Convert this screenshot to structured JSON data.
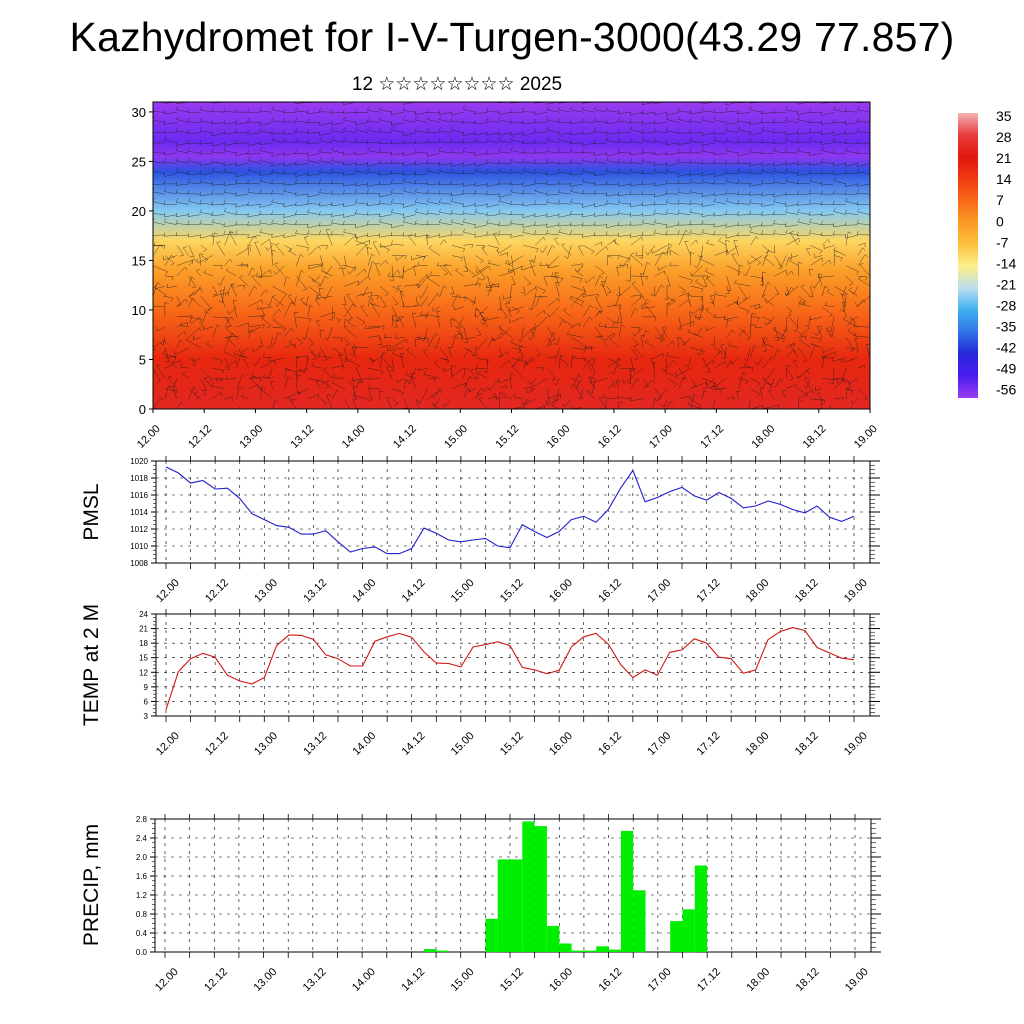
{
  "header": {
    "title": "Kazhydromet for I-V-Turgen-3000(43.29 77.857)",
    "subtitle": "12 ☆☆☆☆☆☆☆☆ 2025"
  },
  "chart_data": [
    {
      "type": "heatmap",
      "id": "vertical-section",
      "title": "",
      "x_tick_labels": [
        "12.00",
        "12.12",
        "13.00",
        "13.12",
        "14.00",
        "14.12",
        "15.00",
        "15.12",
        "16.00",
        "16.12",
        "17.00",
        "17.12",
        "18.00",
        "18.12",
        "19.00"
      ],
      "y_tick_labels": [
        "0",
        "5",
        "10",
        "15",
        "20",
        "25",
        "30"
      ],
      "ylim": [
        0,
        31
      ],
      "overlay": "wind barbs",
      "colorbar": {
        "labels": [
          "35",
          "28",
          "21",
          "14",
          "7",
          "0",
          "-7",
          "-14",
          "-21",
          "-28",
          "-35",
          "-42",
          "-49",
          "-56"
        ],
        "colors": [
          "#f2b3b3",
          "#e83c3c",
          "#e0180f",
          "#f03a10",
          "#f86a18",
          "#fb9a26",
          "#fcc240",
          "#fef08a",
          "#b9def0",
          "#3fb0ef",
          "#2f73e8",
          "#2626d8",
          "#4a1df0",
          "#9a3bf0"
        ]
      },
      "profile_levels": [
        0,
        5,
        10,
        14,
        17,
        20,
        24,
        25.5,
        27,
        31
      ],
      "profile_values_c": [
        24,
        18,
        7,
        -1,
        -10,
        -24,
        -38,
        -55,
        -52,
        -57
      ]
    },
    {
      "type": "line",
      "id": "pmsl",
      "ylabel": "PMSL",
      "ylim": [
        1008,
        1020
      ],
      "y_tick_labels": [
        "1020",
        "1018",
        "1016",
        "1014",
        "1012",
        "1010",
        "1008"
      ],
      "x_tick_labels": [
        "12.00",
        "12.12",
        "13.00",
        "13.12",
        "14.00",
        "14.12",
        "15.00",
        "15.12",
        "16.00",
        "16.12",
        "17.00",
        "17.12",
        "18.00",
        "18.12",
        "19.00"
      ],
      "x_hours": [
        0,
        3,
        6,
        9,
        12,
        15,
        18,
        21,
        24,
        27,
        30,
        33,
        36,
        39,
        42,
        45,
        48,
        51,
        54,
        57,
        60,
        63,
        66,
        69,
        72,
        75,
        78,
        81,
        84,
        87,
        90,
        93,
        96,
        99,
        102,
        105,
        108,
        111,
        114,
        117,
        120,
        123,
        126,
        129,
        132,
        135,
        138,
        141,
        144,
        147,
        150,
        153,
        156,
        159,
        162,
        165,
        168
      ],
      "series": [
        {
          "color": "#1f1fd0",
          "values": [
            1019.3,
            1018.6,
            1017.4,
            1017.7,
            1016.7,
            1016.8,
            1015.6,
            1013.8,
            1013.1,
            1012.4,
            1012.2,
            1011.4,
            1011.4,
            1011.8,
            1010.5,
            1009.3,
            1009.7,
            1009.9,
            1009.1,
            1009.1,
            1009.7,
            1012.1,
            1011.5,
            1010.7,
            1010.5,
            1010.7,
            1010.9,
            1010.0,
            1009.8,
            1012.5,
            1011.7,
            1011.0,
            1011.7,
            1013.1,
            1013.5,
            1012.8,
            1014.3,
            1016.8,
            1018.9,
            1015.2,
            1015.7,
            1016.4,
            1016.9,
            1015.9,
            1015.4,
            1016.3,
            1015.6,
            1014.5,
            1014.7,
            1015.3,
            1014.9,
            1014.3,
            1013.9,
            1014.7,
            1013.4,
            1012.9,
            1013.5
          ]
        }
      ]
    },
    {
      "type": "line",
      "id": "temp2m",
      "ylabel": "TEMP at 2 M",
      "ylim": [
        3,
        24
      ],
      "y_tick_labels": [
        "24",
        "21",
        "18",
        "15",
        "12",
        "9",
        "6",
        "3"
      ],
      "x_tick_labels": [
        "12.00",
        "12.12",
        "13.00",
        "13.12",
        "14.00",
        "14.12",
        "15.00",
        "15.12",
        "16.00",
        "16.12",
        "17.00",
        "17.12",
        "18.00",
        "18.12",
        "19.00"
      ],
      "x_hours": [
        0,
        3,
        6,
        9,
        12,
        15,
        18,
        21,
        24,
        27,
        30,
        33,
        36,
        39,
        42,
        45,
        48,
        51,
        54,
        57,
        60,
        63,
        66,
        69,
        72,
        75,
        78,
        81,
        84,
        87,
        90,
        93,
        96,
        99,
        102,
        105,
        108,
        111,
        114,
        117,
        120,
        123,
        126,
        129,
        132,
        135,
        138,
        141,
        144,
        147,
        150,
        153,
        156,
        159,
        162,
        165,
        168
      ],
      "series": [
        {
          "color": "#d01515",
          "values": [
            4.3,
            12.1,
            14.8,
            15.9,
            15.1,
            11.4,
            10.2,
            9.6,
            10.9,
            17.5,
            19.7,
            19.6,
            18.8,
            15.6,
            14.8,
            13.3,
            13.3,
            18.4,
            19.3,
            20.0,
            19.2,
            16.2,
            13.9,
            13.8,
            13.1,
            17.2,
            17.7,
            18.3,
            17.5,
            13.0,
            12.5,
            11.7,
            12.4,
            17.2,
            19.3,
            20.0,
            17.8,
            13.6,
            10.9,
            12.5,
            11.4,
            16.1,
            16.6,
            18.9,
            18.0,
            15.1,
            14.8,
            11.8,
            12.5,
            18.7,
            20.4,
            21.2,
            20.6,
            17.1,
            16.0,
            14.9,
            14.6
          ]
        }
      ]
    },
    {
      "type": "bar",
      "id": "precip",
      "ylabel": "PRECIP, mm",
      "ylim": [
        0,
        2.8
      ],
      "y_tick_labels": [
        "2.8",
        "2.4",
        "2.0",
        "1.6",
        "1.2",
        "0.8",
        "0.4",
        "0.0"
      ],
      "x_tick_labels": [
        "12.00",
        "12.12",
        "13.00",
        "13.12",
        "14.00",
        "14.12",
        "15.00",
        "15.12",
        "16.00",
        "16.12",
        "17.00",
        "17.12",
        "18.00",
        "18.12",
        "19.00"
      ],
      "bar_color": "#00ef00",
      "bar_width_hours": 3,
      "bars": [
        {
          "start": 63,
          "value": 0.06
        },
        {
          "start": 66,
          "value": 0.03
        },
        {
          "start": 78,
          "value": 0.7
        },
        {
          "start": 81,
          "value": 1.95
        },
        {
          "start": 84,
          "value": 1.95
        },
        {
          "start": 87,
          "value": 2.75
        },
        {
          "start": 90,
          "value": 2.65
        },
        {
          "start": 93,
          "value": 0.55
        },
        {
          "start": 96,
          "value": 0.18
        },
        {
          "start": 99,
          "value": 0.03
        },
        {
          "start": 102,
          "value": 0.03
        },
        {
          "start": 105,
          "value": 0.12
        },
        {
          "start": 108,
          "value": 0.05
        },
        {
          "start": 111,
          "value": 2.55
        },
        {
          "start": 114,
          "value": 1.3
        },
        {
          "start": 123,
          "value": 0.65
        },
        {
          "start": 126,
          "value": 0.9
        },
        {
          "start": 129,
          "value": 1.82
        }
      ]
    }
  ]
}
